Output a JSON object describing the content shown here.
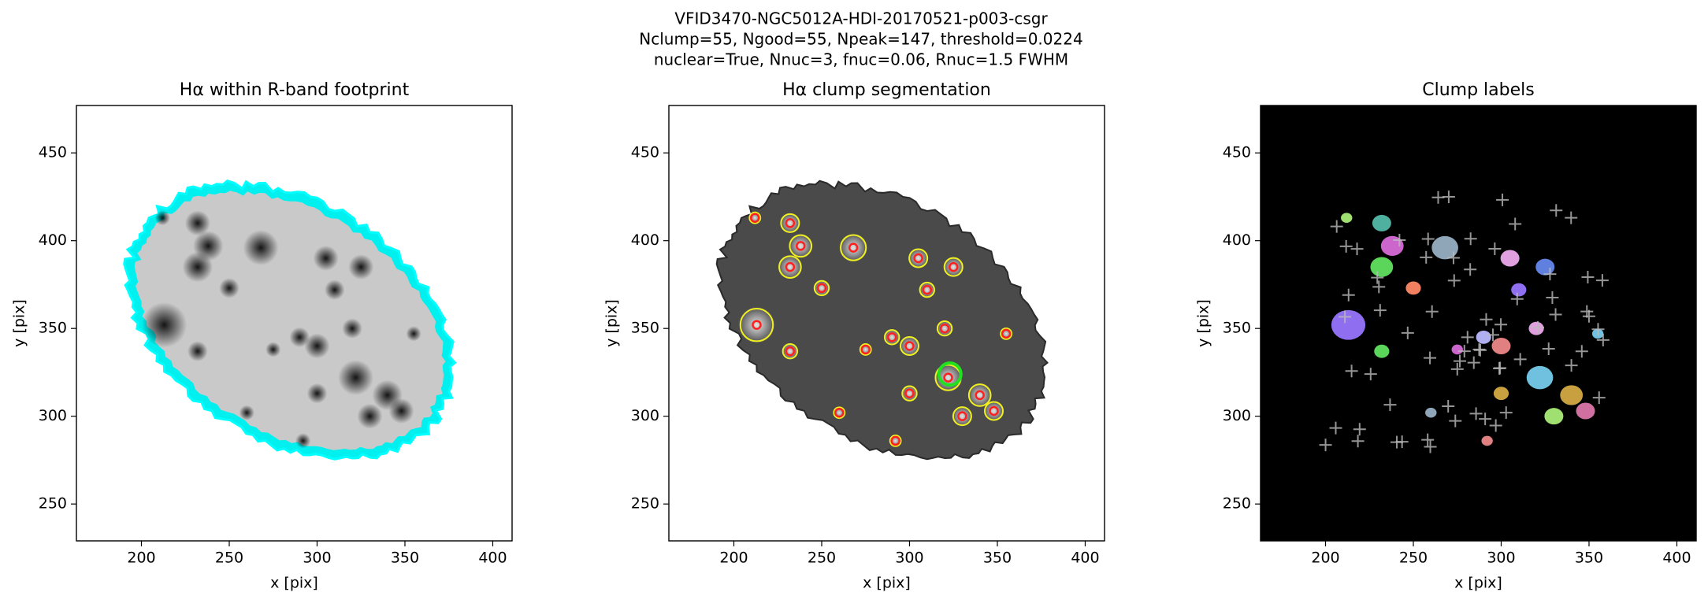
{
  "suptitle": [
    "VFID3470-NGC5012A-HDI-20170521-p003-csgr",
    "Nclump=55, Ngood=55, Npeak=147, threshold=0.0224",
    "nuclear=True, Nnuc=3, fnuc=0.06, Rnuc=1.5 FWHM"
  ],
  "chart_data": [
    {
      "type": "image",
      "cmap": "gray_r",
      "title": "Hα within R-band footprint",
      "xlabel": "x [pix]",
      "ylabel": "y [pix]",
      "xlim": [
        163,
        411
      ],
      "ylim": [
        229,
        477
      ],
      "xticks": [
        200,
        250,
        300,
        350,
        400
      ],
      "yticks": [
        250,
        300,
        350,
        400,
        450
      ]
    },
    {
      "type": "image",
      "cmap": "gray",
      "title": "Hα clump segmentation",
      "xlabel": "x [pix]",
      "ylabel": "y [pix]",
      "xlim": [
        163,
        411
      ],
      "ylim": [
        229,
        477
      ],
      "xticks": [
        200,
        250,
        300,
        350,
        400
      ],
      "yticks": [
        250,
        300,
        350,
        400,
        450
      ]
    },
    {
      "type": "image",
      "cmap": "labels",
      "title": "Clump labels",
      "xlabel": "x [pix]",
      "ylabel": "y [pix]",
      "xlim": [
        163,
        411
      ],
      "ylim": [
        229,
        477
      ],
      "xticks": [
        200,
        250,
        300,
        350,
        400
      ],
      "yticks": [
        250,
        300,
        350,
        400,
        450
      ]
    }
  ]
}
